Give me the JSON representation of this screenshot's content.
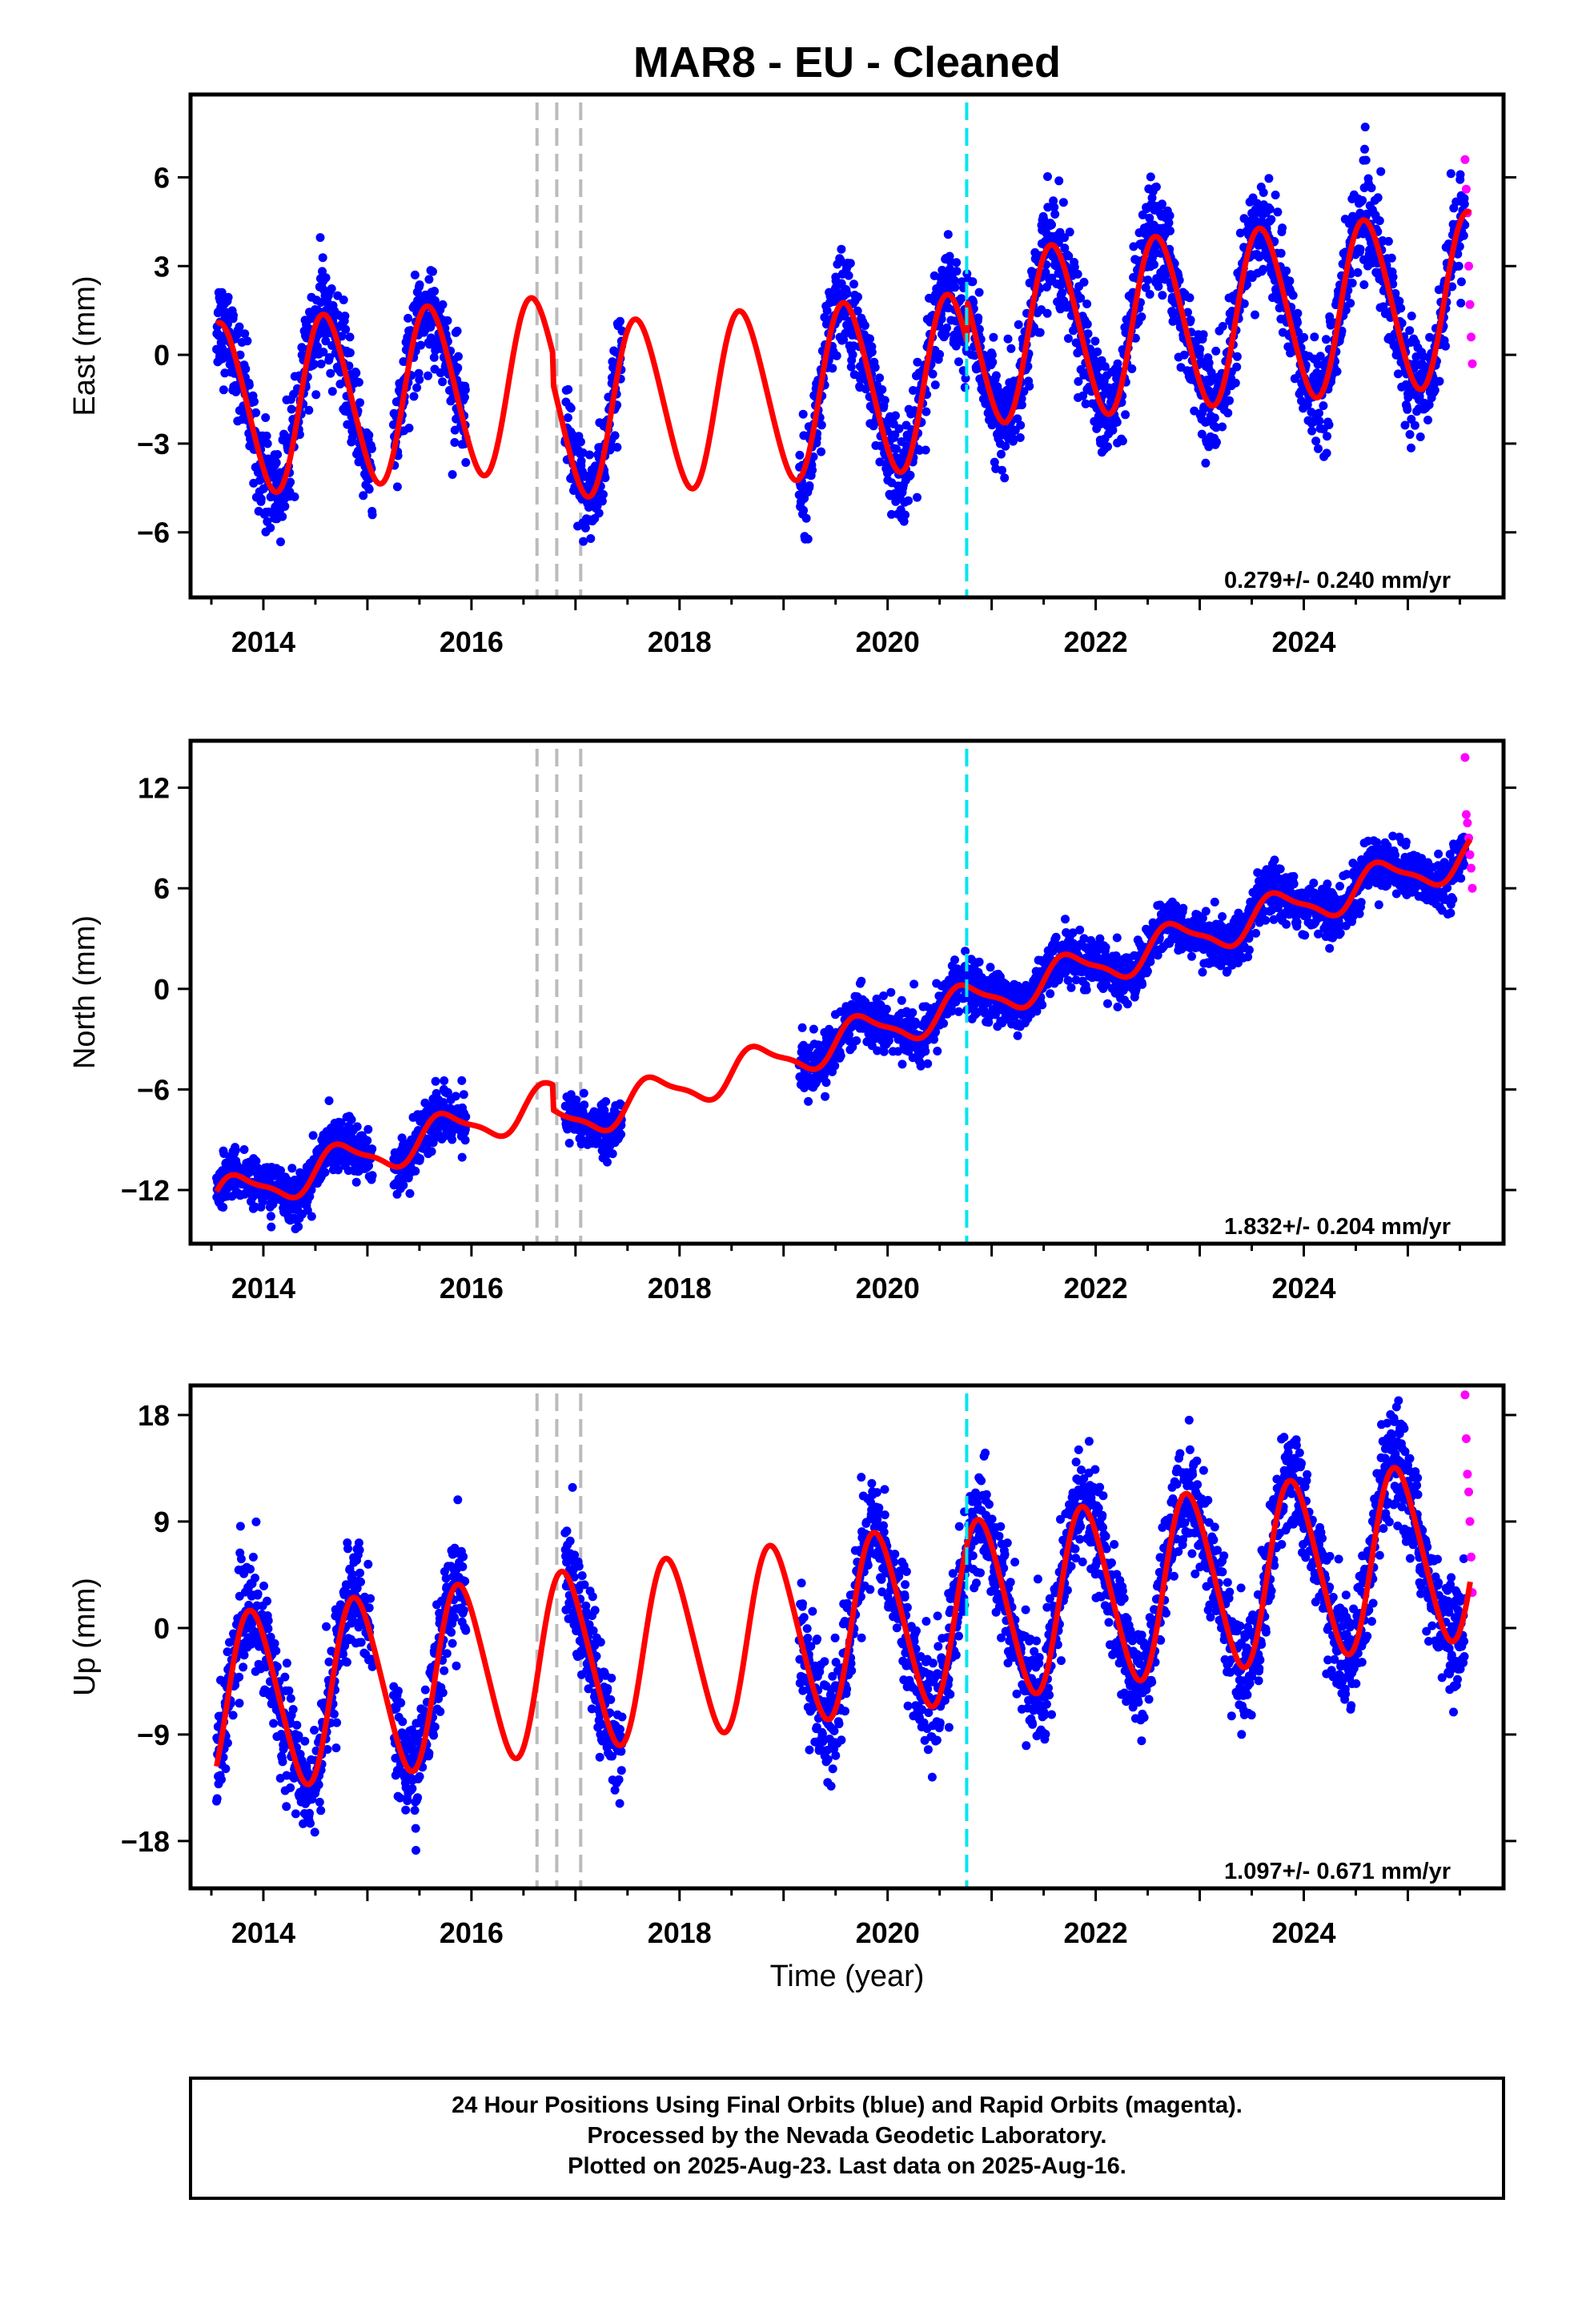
{
  "title": "MAR8  - EU - Cleaned",
  "colors": {
    "final_orbits": "#0000ff",
    "rapid_orbits": "#ff00ff",
    "model_fit": "#ff0000",
    "equipment_change": "#bbbbbb",
    "event_marker": "#00e5ee",
    "frame": "#000000"
  },
  "chart_data": [
    {
      "type": "scatter",
      "name": "east",
      "ylabel": "East (mm)",
      "xlabel": "",
      "xlim": [
        2013.3,
        2025.92
      ],
      "ylim": [
        -8.2,
        8.8
      ],
      "xticks": [
        2014,
        2016,
        2018,
        2020,
        2022,
        2024
      ],
      "yticks": [
        6,
        3,
        0,
        -3,
        -6
      ],
      "ytick_labels": [
        "6",
        "3",
        "0",
        "−3",
        "−6"
      ],
      "rate_label": "0.279+/- 0.240 mm/yr",
      "model": {
        "rate": 0.279,
        "intercept": -0.2,
        "annual_amp": 2.9,
        "annual_phase_year": 0.35,
        "semiannual_amp": 0.25,
        "offsets": [
          {
            "t": 2016.78,
            "dy": -1.0
          },
          {
            "t": 2020.76,
            "dy": 1.4
          }
        ]
      },
      "scatter_spread": 1.1,
      "data_segments": [
        [
          2013.55,
          2015.05
        ],
        [
          2015.25,
          2015.95
        ],
        [
          2016.9,
          2017.45
        ],
        [
          2019.15,
          2025.55
        ]
      ],
      "rapid_points": {
        "x_start": 2025.55,
        "x_end": 2025.62,
        "y_values": [
          6.6,
          5.6,
          4.8,
          3.0,
          1.7,
          0.6,
          -0.3
        ]
      },
      "equipment_changes": [
        2016.63,
        2016.82,
        2017.05
      ],
      "event_markers": [
        2020.76
      ]
    },
    {
      "type": "scatter",
      "name": "north",
      "ylabel": "North (mm)",
      "xlabel": "",
      "xlim": [
        2013.3,
        2025.92
      ],
      "ylim": [
        -15.2,
        14.8
      ],
      "xticks": [
        2014,
        2016,
        2018,
        2020,
        2022,
        2024
      ],
      "yticks": [
        12,
        6,
        0,
        -6,
        -12
      ],
      "ytick_labels": [
        "12",
        "6",
        "0",
        "−6",
        "−12"
      ],
      "rate_label": "1.832+/- 0.204 mm/yr",
      "model": {
        "rate": 1.832,
        "intercept": -1.7,
        "annual_amp": 1.1,
        "annual_phase_year": 0.5,
        "semiannual_amp": 0.3,
        "offsets": [
          {
            "t": 2016.78,
            "dy": -1.5
          }
        ]
      },
      "scatter_spread": 1.0,
      "data_segments": [
        [
          2013.55,
          2015.05
        ],
        [
          2015.25,
          2015.95
        ],
        [
          2016.9,
          2017.45
        ],
        [
          2019.15,
          2025.55
        ]
      ],
      "rapid_points": {
        "x_start": 2025.55,
        "x_end": 2025.62,
        "y_values": [
          13.8,
          10.4,
          9.9,
          9.0,
          8.0,
          7.2,
          6.0
        ]
      },
      "equipment_changes": [
        2016.63,
        2016.82,
        2017.05
      ],
      "event_markers": [
        2020.76
      ]
    },
    {
      "type": "scatter",
      "name": "up",
      "ylabel": "Up (mm)",
      "xlabel": "Time (year)",
      "xlim": [
        2013.3,
        2025.92
      ],
      "ylim": [
        -22,
        20.5
      ],
      "xticks": [
        2014,
        2016,
        2018,
        2020,
        2022,
        2024
      ],
      "yticks": [
        18,
        9,
        0,
        -9,
        -18
      ],
      "ytick_labels": [
        "18",
        "9",
        "0",
        "−9",
        "−18"
      ],
      "rate_label": "1.097+/- 0.671 mm/yr",
      "model": {
        "rate": 1.097,
        "intercept": 0.0,
        "annual_amp": 7.5,
        "annual_phase_year": 0.65,
        "semiannual_amp": 0.8,
        "offsets": []
      },
      "scatter_spread": 3.0,
      "data_segments": [
        [
          2013.55,
          2015.05
        ],
        [
          2015.25,
          2015.95
        ],
        [
          2016.9,
          2017.45
        ],
        [
          2019.15,
          2025.55
        ]
      ],
      "rapid_points": {
        "x_start": 2025.55,
        "x_end": 2025.62,
        "y_values": [
          19.7,
          16.0,
          13.0,
          11.5,
          9.0,
          6.0,
          3.0
        ]
      },
      "equipment_changes": [
        2016.63,
        2016.82,
        2017.05
      ],
      "event_markers": [
        2020.76
      ]
    }
  ],
  "footer": {
    "line1": "24 Hour Positions Using Final Orbits (blue) and Rapid Orbits (magenta).",
    "line2": "Processed by the Nevada Geodetic Laboratory.",
    "line3": "Plotted on 2025-Aug-23. Last data on 2025-Aug-16."
  }
}
